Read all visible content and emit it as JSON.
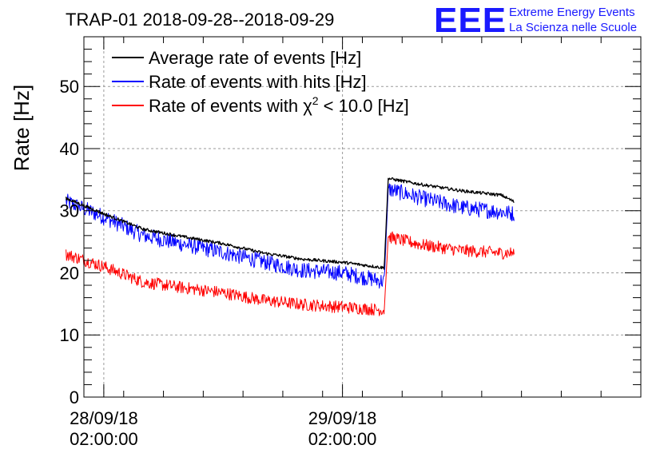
{
  "chart_data": {
    "type": "line",
    "title": "TRAP-01 2018-09-28--2018-09-29",
    "ylabel": "Rate [Hz]",
    "xlabel": "",
    "ylim": [
      0,
      58
    ],
    "yticks": [
      0,
      10,
      20,
      30,
      40,
      50
    ],
    "x_unit": "hours since 2018-09-28 00:00",
    "xlim": [
      0,
      56
    ],
    "xticks": [
      {
        "x": 2,
        "line1": "28/09/18",
        "line2": "02:00:00"
      },
      {
        "x": 26,
        "line1": "29/09/18",
        "line2": "02:00:00"
      }
    ],
    "grid": true,
    "legend_position": "top-left",
    "series": [
      {
        "name": "Average rate of events [Hz]",
        "color": "#000000",
        "noise": 0.25,
        "points": [
          [
            -1.8,
            32
          ],
          [
            2,
            29.5
          ],
          [
            6,
            27
          ],
          [
            10,
            25.8
          ],
          [
            14,
            24.7
          ],
          [
            18,
            23.2
          ],
          [
            22,
            22.2
          ],
          [
            26,
            21.7
          ],
          [
            30.2,
            20.8
          ],
          [
            30.6,
            35.2
          ],
          [
            34,
            34.2
          ],
          [
            38,
            33.2
          ],
          [
            42,
            32.5
          ],
          [
            43.3,
            31.4
          ]
        ]
      },
      {
        "name": "Rate of events with hits [Hz]",
        "color": "#0000ff",
        "noise": 1.3,
        "points": [
          [
            -1.8,
            31.5
          ],
          [
            2,
            29
          ],
          [
            6,
            26
          ],
          [
            10,
            24.6
          ],
          [
            14,
            23.3
          ],
          [
            18,
            21.8
          ],
          [
            22,
            20.4
          ],
          [
            26,
            20
          ],
          [
            30.2,
            18.6
          ],
          [
            30.6,
            33.5
          ],
          [
            34,
            32
          ],
          [
            38,
            30.5
          ],
          [
            42,
            29.8
          ],
          [
            43.3,
            29.5
          ]
        ]
      },
      {
        "name": "Rate of events with χ² < 10.0 [Hz]",
        "color": "#ff0000",
        "noise": 1.0,
        "points": [
          [
            -1.8,
            23
          ],
          [
            2,
            21
          ],
          [
            6,
            18.5
          ],
          [
            10,
            17.6
          ],
          [
            14,
            16.8
          ],
          [
            18,
            15.6
          ],
          [
            22,
            14.9
          ],
          [
            26,
            14.5
          ],
          [
            30.2,
            14
          ],
          [
            30.6,
            25.8
          ],
          [
            34,
            24.5
          ],
          [
            38,
            23.6
          ],
          [
            42,
            23.2
          ],
          [
            43.3,
            23.2
          ]
        ]
      }
    ],
    "legend": {
      "entries": [
        {
          "prefix": "Average rate of events [Hz]",
          "sup": "",
          "suffix": "",
          "color": "#000000"
        },
        {
          "prefix": "Rate of events with hits [Hz]",
          "sup": "",
          "suffix": "",
          "color": "#0000ff"
        },
        {
          "prefix": "Rate of events with χ",
          "sup": "2",
          "suffix": " < 10.0 [Hz]",
          "color": "#ff0000"
        }
      ]
    }
  },
  "logo": {
    "mark": "EEE",
    "line1": "Extreme Energy Events",
    "line2": "La Scienza nelle Scuole",
    "color": "#1a1aff"
  }
}
